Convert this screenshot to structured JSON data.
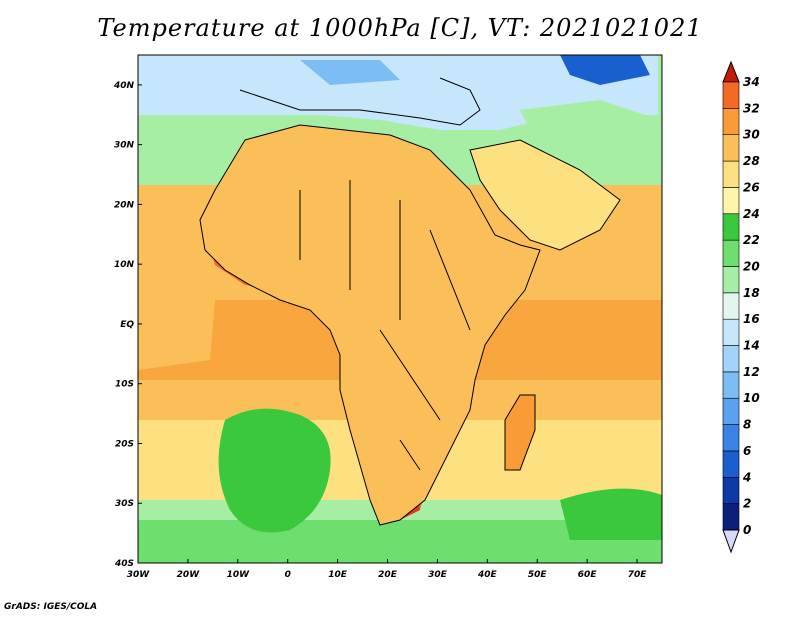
{
  "title": "Temperature at 1000hPa [C], VT: 2021021021",
  "credit": "GrADS: IGES/COLA",
  "map": {
    "lon_range": [
      -30,
      75
    ],
    "lat_range": [
      -40,
      45
    ],
    "lon_ticks": [
      {
        "value": -30,
        "label": "30W"
      },
      {
        "value": -20,
        "label": "20W"
      },
      {
        "value": -10,
        "label": "10W"
      },
      {
        "value": 0,
        "label": "0"
      },
      {
        "value": 10,
        "label": "10E"
      },
      {
        "value": 20,
        "label": "20E"
      },
      {
        "value": 30,
        "label": "30E"
      },
      {
        "value": 40,
        "label": "40E"
      },
      {
        "value": 50,
        "label": "50E"
      },
      {
        "value": 60,
        "label": "60E"
      },
      {
        "value": 70,
        "label": "70E"
      }
    ],
    "lat_ticks": [
      {
        "value": 40,
        "label": "40N"
      },
      {
        "value": 30,
        "label": "30N"
      },
      {
        "value": 20,
        "label": "20N"
      },
      {
        "value": 10,
        "label": "10N"
      },
      {
        "value": 0,
        "label": "EQ"
      },
      {
        "value": -10,
        "label": "10S"
      },
      {
        "value": -20,
        "label": "20S"
      },
      {
        "value": -30,
        "label": "30S"
      },
      {
        "value": -40,
        "label": "40S"
      }
    ]
  },
  "colorbar": {
    "levels": [
      {
        "value": "0",
        "color": "#0a1f7a"
      },
      {
        "value": "2",
        "color": "#0d3aa8"
      },
      {
        "value": "4",
        "color": "#1a5fd0"
      },
      {
        "value": "6",
        "color": "#3a83e6"
      },
      {
        "value": "8",
        "color": "#5aa2f0"
      },
      {
        "value": "10",
        "color": "#7dbdf6"
      },
      {
        "value": "12",
        "color": "#a2d4fa"
      },
      {
        "value": "14",
        "color": "#c6e6fb"
      },
      {
        "value": "16",
        "color": "#e2f6ee"
      },
      {
        "value": "18",
        "color": "#a6eea4"
      },
      {
        "value": "20",
        "color": "#6ede6e"
      },
      {
        "value": "22",
        "color": "#3cc83c"
      },
      {
        "value": "24",
        "color": "#fdf6a8"
      },
      {
        "value": "26",
        "color": "#fde080"
      },
      {
        "value": "28",
        "color": "#fbbf5a"
      },
      {
        "value": "30",
        "color": "#f99b36"
      },
      {
        "value": "32",
        "color": "#f26a24"
      },
      {
        "value": "34",
        "color": "#e23a17"
      }
    ],
    "under_color": "#d8d8fa",
    "over_color": "#c41a0c"
  },
  "colors": {
    "ocean_north": "#f7b45a",
    "ocean_south": "#fde080",
    "sahara": "#fde080",
    "sahel_hot": "#e44a1e",
    "med": "#c6e6fb",
    "green_land": "#6ede6e",
    "south_green": "#3cc83c"
  }
}
